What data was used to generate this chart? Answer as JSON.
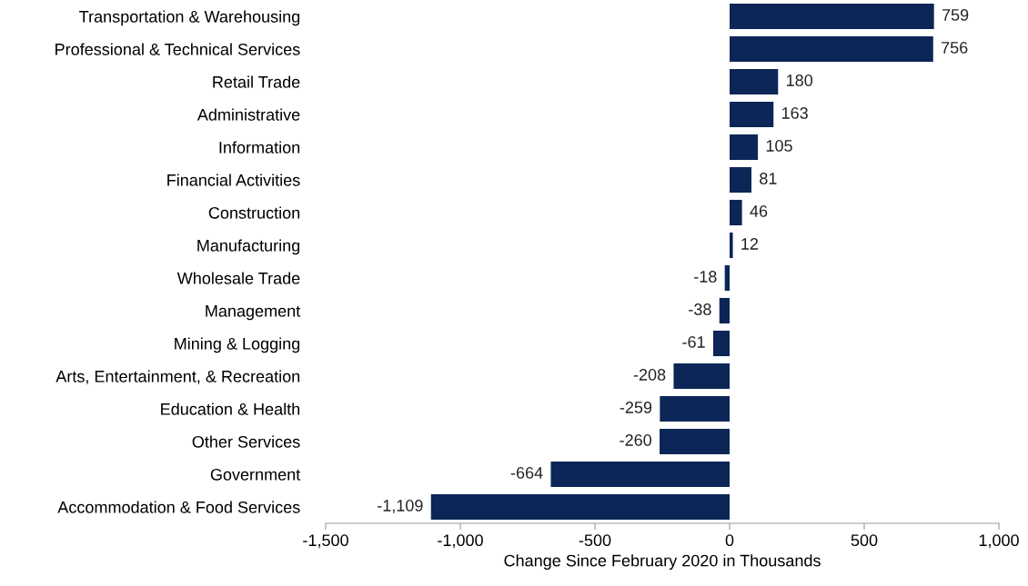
{
  "chart_data": {
    "type": "bar",
    "orientation": "horizontal",
    "xlabel": "Change Since February 2020 in Thousands",
    "categories": [
      "Transportation & Warehousing",
      "Professional & Technical Services",
      "Retail Trade",
      "Administrative",
      "Information",
      "Financial Activities",
      "Construction",
      "Manufacturing",
      "Wholesale Trade",
      "Management",
      "Mining & Logging",
      "Arts, Entertainment, & Recreation",
      "Education & Health",
      "Other Services",
      "Government",
      "Accommodation & Food Services"
    ],
    "values": [
      759,
      756,
      180,
      163,
      105,
      81,
      46,
      12,
      -18,
      -38,
      -61,
      -208,
      -259,
      -260,
      -664,
      -1109
    ],
    "value_labels": [
      "759",
      "756",
      "180",
      "163",
      "105",
      "81",
      "46",
      "12",
      "-18",
      "-38",
      "-61",
      "-208",
      "-259",
      "-260",
      "-664",
      "-1,109"
    ],
    "color": "#0b2657",
    "xlim": [
      -1500,
      1000
    ],
    "xticks": [
      {
        "value": -1500,
        "label": "-1,500"
      },
      {
        "value": -1000,
        "label": "-1,000"
      },
      {
        "value": -500,
        "label": "-500"
      },
      0,
      500,
      {
        "value": 1000,
        "label": "1,000"
      }
    ],
    "grid": false,
    "legend": false
  }
}
